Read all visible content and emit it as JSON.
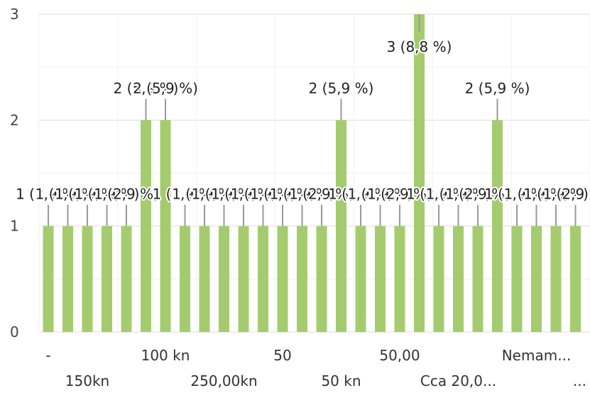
{
  "chart_data": {
    "type": "bar",
    "title": "",
    "xlabel": "",
    "ylabel": "",
    "ylim": [
      0,
      3
    ],
    "yticks": [
      0,
      1,
      2,
      3
    ],
    "grid": true,
    "legend": "none",
    "bar_color": "#a4cc6e",
    "grid_color": "#e6e6e6",
    "leader_color": "#999999",
    "values": [
      1,
      1,
      1,
      1,
      1,
      2,
      2,
      1,
      1,
      1,
      1,
      1,
      1,
      1,
      1,
      2,
      1,
      1,
      1,
      3,
      1,
      1,
      1,
      2,
      1,
      1,
      1,
      1
    ],
    "labels": [
      "1 (2,9 %)",
      "1 (2,9 %)",
      "1 (2,9 %)",
      "1 (2,9 %)",
      "1 (2,9 %)",
      "2 (5,9 %)",
      "2 (5,9 %)",
      "1 (2,9 %)",
      "1 (2,9 %)",
      "1 (2,9 %)",
      "1 (2,9 %)",
      "1 (2,9 %)",
      "1 (2,9 %)",
      "1 (2,9 %)",
      "1 (2,9 %)",
      "2 (5,9 %)",
      "1 (2,9 %)",
      "1 (2,9 %)",
      "1 (2,9 %)",
      "3 (8,8 %)",
      "1 (2,9 %)",
      "1 (2,9 %)",
      "1 (2,9 %)",
      "2 (5,9 %)",
      "1 (2,9 %)",
      "1 (2,9 %)",
      "1 (2,9 %)",
      "1 (2,9 %)"
    ],
    "x_tick_labels": [
      {
        "bar": 0,
        "text": "-",
        "row": 1
      },
      {
        "bar": 2,
        "text": "150kn",
        "row": 2
      },
      {
        "bar": 6,
        "text": "100 kn",
        "row": 1
      },
      {
        "bar": 9,
        "text": "250,00kn",
        "row": 2
      },
      {
        "bar": 12,
        "text": "50",
        "row": 1
      },
      {
        "bar": 15,
        "text": "50 kn",
        "row": 2
      },
      {
        "bar": 18,
        "text": "50,00",
        "row": 1
      },
      {
        "bar": 21,
        "text": "Cca 20,0...",
        "row": 2
      },
      {
        "bar": 25,
        "text": "Nemam...",
        "row": 1
      },
      {
        "bar": 27,
        "text": "...",
        "row": 2
      }
    ]
  }
}
